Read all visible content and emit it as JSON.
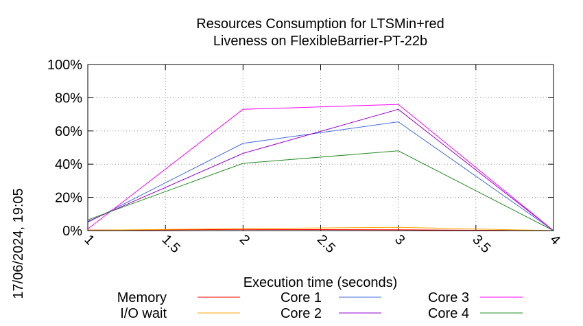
{
  "chart_data": {
    "type": "line",
    "title": "Resources Consumption for LTSMin+red",
    "subtitle": "Liveness on FlexibleBarrier-PT-22b",
    "xlabel": "Execution time (seconds)",
    "ylabel": "",
    "xlim": [
      1,
      4
    ],
    "ylim": [
      0,
      100
    ],
    "x_ticks": [
      "1",
      "1.5",
      "2",
      "2.5",
      "3",
      "3.5",
      "4"
    ],
    "y_ticks": [
      "0%",
      "20%",
      "40%",
      "60%",
      "80%",
      "100%"
    ],
    "grid": true,
    "legend_position": "bottom",
    "side_label": "17/06/2024, 19:05",
    "series": [
      {
        "name": "Memory",
        "color": "#ff0000",
        "x": [
          1,
          2,
          3,
          4
        ],
        "y": [
          0.3,
          0.7,
          0.5,
          0
        ]
      },
      {
        "name": "I/O wait",
        "color": "#ffa500",
        "x": [
          1,
          2,
          3,
          4
        ],
        "y": [
          0.2,
          1.2,
          2,
          0
        ]
      },
      {
        "name": "Core 1",
        "color": "#4169e1",
        "x": [
          1,
          2,
          3,
          4
        ],
        "y": [
          5,
          52.5,
          65.5,
          0
        ]
      },
      {
        "name": "Core 2",
        "color": "#9400d3",
        "x": [
          1,
          2,
          3,
          4
        ],
        "y": [
          5.5,
          46.5,
          73,
          0
        ]
      },
      {
        "name": "Core 3",
        "color": "#ff00ff",
        "x": [
          1,
          2,
          3,
          4
        ],
        "y": [
          1,
          73,
          76,
          0
        ]
      },
      {
        "name": "Core 4",
        "color": "#228b22",
        "x": [
          1,
          2,
          3,
          4
        ],
        "y": [
          6.5,
          40.5,
          48,
          0
        ]
      }
    ]
  }
}
